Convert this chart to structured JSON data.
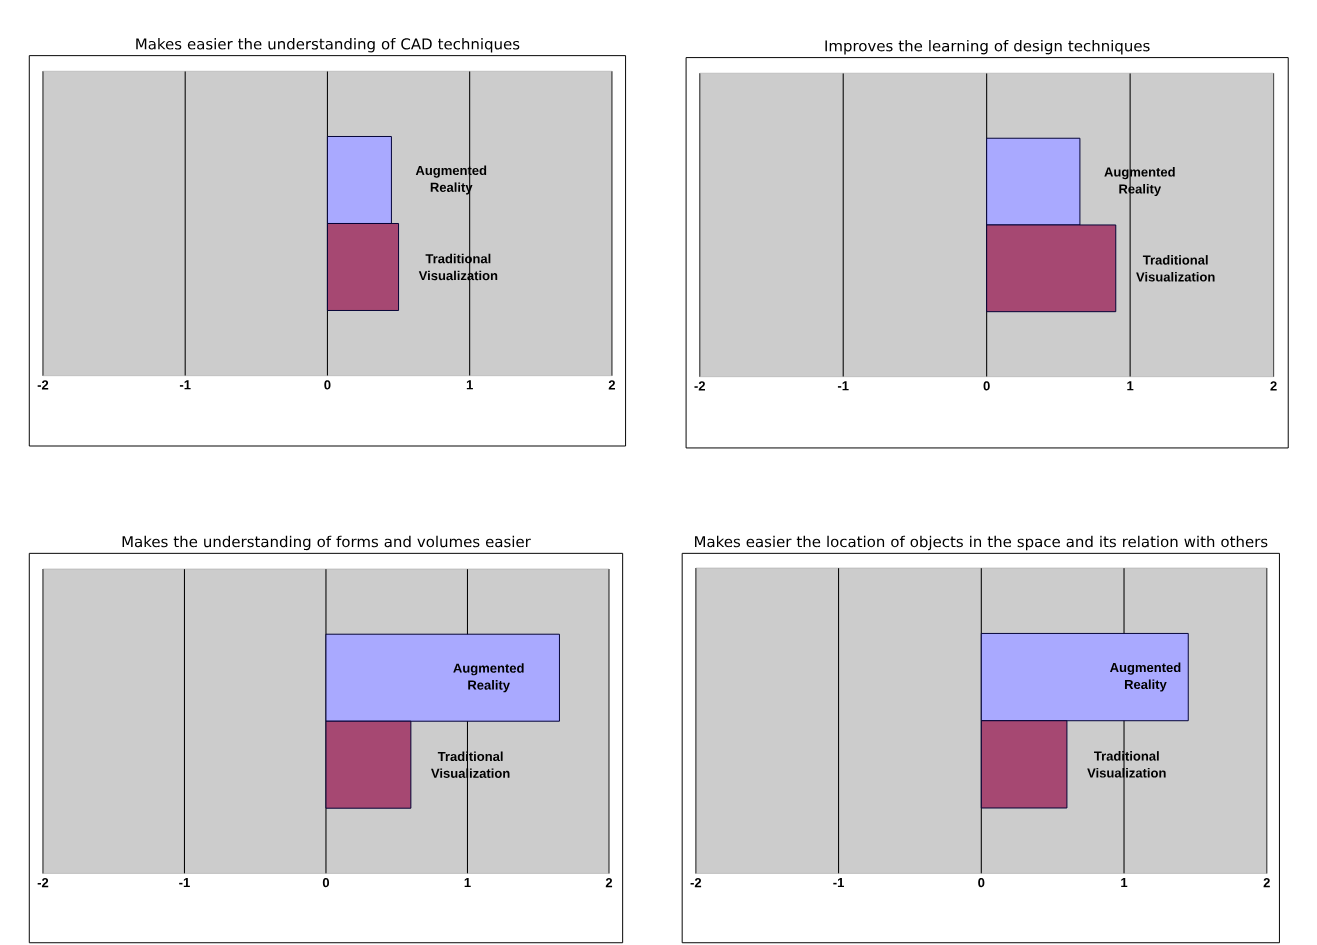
{
  "chart_data": [
    {
      "type": "bar",
      "orientation": "horizontal",
      "title": "Makes easier the understanding of CAD techniques",
      "categories": [
        null
      ],
      "series": [
        {
          "name": "Augmented Reality",
          "color": "#a9a9ff",
          "values": [
            0.45
          ]
        },
        {
          "name": "Traditional Visualization",
          "color": "#a64872",
          "values": [
            0.5
          ]
        }
      ],
      "xlim": [
        -2,
        2
      ],
      "xticks": [
        -2,
        -1,
        0,
        1,
        2
      ],
      "grid": "x"
    },
    {
      "type": "bar",
      "orientation": "horizontal",
      "title": "Improves the learning of design techniques",
      "categories": [
        null
      ],
      "series": [
        {
          "name": "Augmented Reality",
          "color": "#a9a9ff",
          "values": [
            0.65
          ]
        },
        {
          "name": "Traditional Visualization",
          "color": "#a64872",
          "values": [
            0.9
          ]
        }
      ],
      "xlim": [
        -2,
        2
      ],
      "xticks": [
        -2,
        -1,
        0,
        1,
        2
      ],
      "grid": "x"
    },
    {
      "type": "bar",
      "orientation": "horizontal",
      "title": "Makes the understanding of forms and volumes easier",
      "categories": [
        null
      ],
      "series": [
        {
          "name": "Augmented Reality",
          "color": "#a9a9ff",
          "values": [
            1.65
          ]
        },
        {
          "name": "Traditional Visualization",
          "color": "#a64872",
          "values": [
            0.6
          ]
        }
      ],
      "xlim": [
        -2,
        2
      ],
      "xticks": [
        -2,
        -1,
        0,
        1,
        2
      ],
      "grid": "x"
    },
    {
      "type": "bar",
      "orientation": "horizontal",
      "title": "Makes easier the location of objects in the space and its relation with others",
      "categories": [
        null
      ],
      "series": [
        {
          "name": "Augmented Reality",
          "color": "#a9a9ff",
          "values": [
            1.45
          ]
        },
        {
          "name": "Traditional Visualization",
          "color": "#a64872",
          "values": [
            0.6
          ]
        }
      ],
      "xlim": [
        -2,
        2
      ],
      "xticks": [
        -2,
        -1,
        0,
        1,
        2
      ],
      "grid": "x"
    }
  ]
}
